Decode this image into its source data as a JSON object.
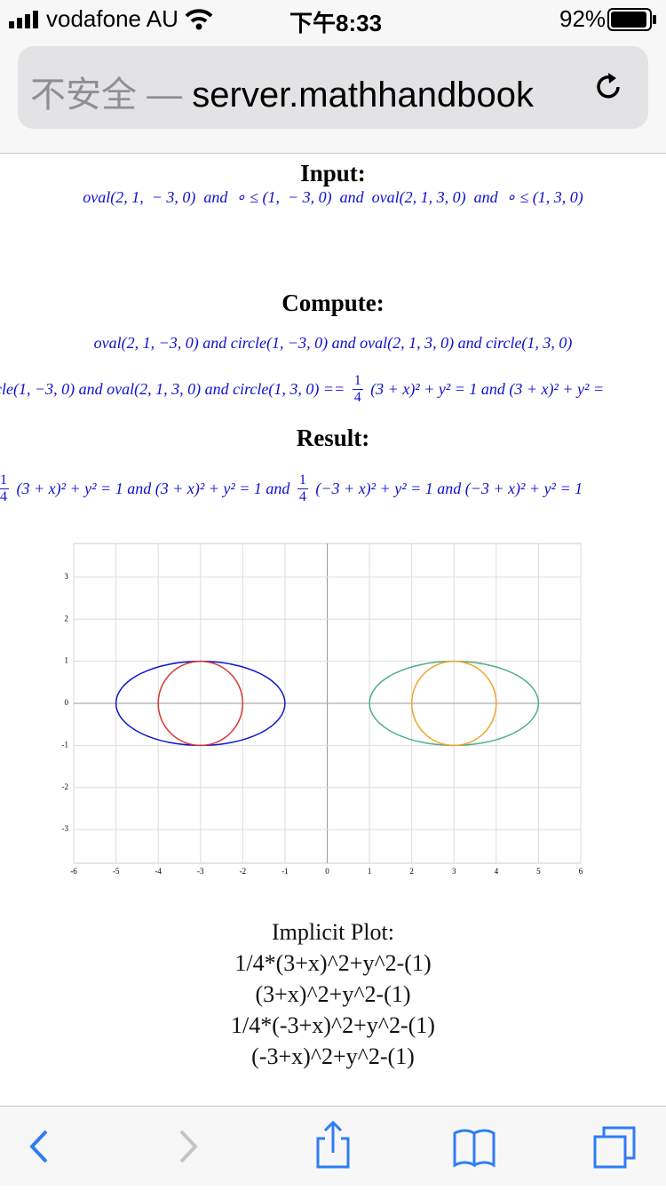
{
  "status_bar": {
    "carrier": "vodafone AU",
    "time": "下午8:33",
    "battery": "92%"
  },
  "address_bar": {
    "security": "不安全 —",
    "url": "server.mathhandbook"
  },
  "input": {
    "heading": "Input:",
    "lines": [
      [
        "oval(2, 1,  − 3, 0)  and  ∘ ≤ (1,  − 3, 0)  and  oval(2, 1, 3, 0)  and  ∘ ≤ (1, 3, 0)"
      ]
    ]
  },
  "compute": {
    "heading": "Compute:",
    "lines": [
      [
        "oval(2, 1, −3, 0) and circle(1, −3, 0) and oval(2, 1, 3, 0) and circle(1, 3, 0)"
      ],
      [
        "cle(1, −3, 0) and oval(2, 1, 3, 0) and circle(1, 3, 0) == ",
        {
          "num": "1",
          "den": "4"
        },
        " (3 + x)² + y² = 1 and (3 + x)² + y² ="
      ]
    ]
  },
  "result": {
    "heading": "Result:",
    "lines": [
      [
        {
          "num": "1",
          "den": "4"
        },
        " (3 + x)² + y² = 1 and (3 + x)² + y² = 1 and ",
        {
          "num": "1",
          "den": "4"
        },
        " (−3 + x)² + y² = 1 and (−3 + x)² + y² = 1"
      ]
    ]
  },
  "chart_data": {
    "type": "implicit",
    "xlim": [
      -6,
      6
    ],
    "ylim": [
      -3.8,
      3.8
    ],
    "xticks": [
      -6,
      -5,
      -4,
      -3,
      -2,
      -1,
      0,
      1,
      2,
      3,
      4,
      5,
      6
    ],
    "yticks": [
      -3,
      -2,
      -1,
      0,
      1,
      2,
      3
    ],
    "grid": true,
    "curves": [
      {
        "color": "#0b14cf",
        "cx": -3,
        "cy": 0,
        "rx": 2,
        "ry": 1
      },
      {
        "color": "#d63a2f",
        "cx": -3,
        "cy": 0,
        "rx": 1,
        "ry": 1
      },
      {
        "color": "#4fae84",
        "cx": 3,
        "cy": 0,
        "rx": 2,
        "ry": 1
      },
      {
        "color": "#eea52a",
        "cx": 3,
        "cy": 0,
        "rx": 1,
        "ry": 1
      }
    ]
  },
  "implicit_plot": {
    "heading": "Implicit Plot:",
    "expressions": [
      "1/4*(3+x)^2+y^2-(1)",
      "(3+x)^2+y^2-(1)",
      "1/4*(-3+x)^2+y^2-(1)",
      "(-3+x)^2+y^2-(1)"
    ]
  }
}
